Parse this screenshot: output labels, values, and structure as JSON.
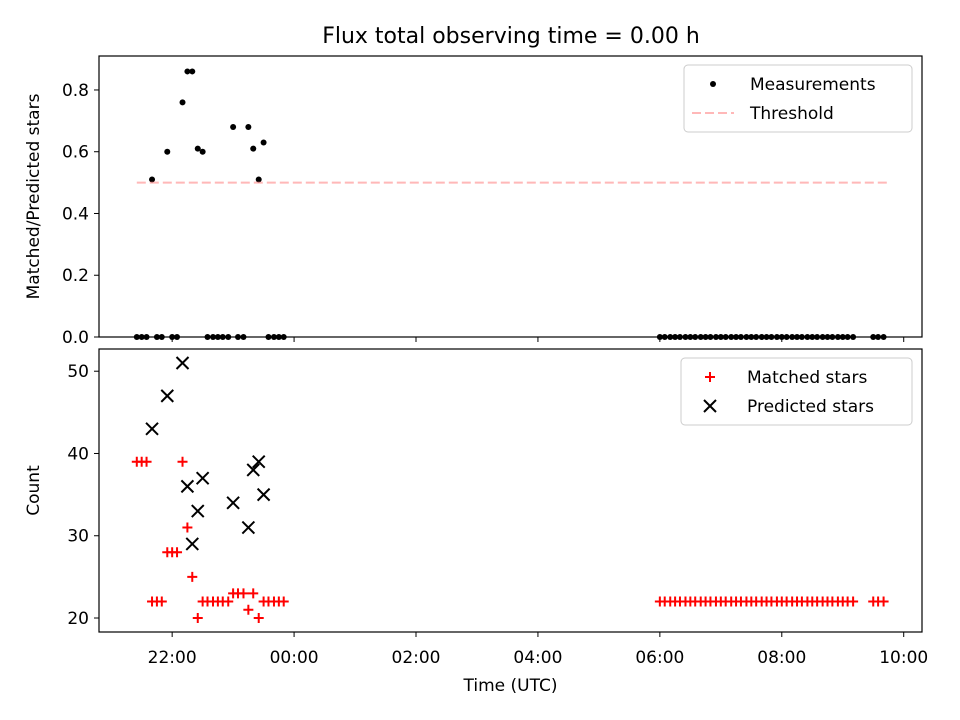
{
  "title": "Flux total observing time = 0.00 h",
  "chart_data": [
    {
      "type": "scatter",
      "ylabel": "Matched/Predicted stars",
      "xlim": [
        20.8,
        10.3
      ],
      "ylim": [
        0,
        0.91
      ],
      "xticks": [
        22,
        0,
        2,
        4,
        6,
        8,
        10
      ],
      "xticklabels": [
        "22:00",
        "00:00",
        "02:00",
        "04:00",
        "06:00",
        "08:00",
        "10:00"
      ],
      "yticks": [
        0.0,
        0.2,
        0.4,
        0.6,
        0.8
      ],
      "yticklabels": [
        "0.0",
        "0.2",
        "0.4",
        "0.6",
        "0.8"
      ],
      "legend": "top-right",
      "legend_entries": [
        {
          "label": "Measurements",
          "marker": "dot",
          "color": "#000000"
        },
        {
          "label": "Threshold",
          "marker": "dashed-line",
          "color": "#ff7f7f"
        }
      ],
      "series": [
        {
          "name": "Measurements",
          "style": "dot",
          "color": "#000000",
          "points": [
            [
              21.42,
              0
            ],
            [
              21.5,
              0
            ],
            [
              21.58,
              0
            ],
            [
              21.67,
              0.51
            ],
            [
              21.75,
              0
            ],
            [
              21.83,
              0
            ],
            [
              21.92,
              0.6
            ],
            [
              22.0,
              0
            ],
            [
              22.08,
              0
            ],
            [
              22.17,
              0.76
            ],
            [
              22.25,
              0.86
            ],
            [
              22.33,
              0.86
            ],
            [
              22.42,
              0.61
            ],
            [
              22.5,
              0.6
            ],
            [
              22.58,
              0
            ],
            [
              22.67,
              0
            ],
            [
              22.75,
              0
            ],
            [
              22.83,
              0
            ],
            [
              22.92,
              0
            ],
            [
              23.0,
              0.68
            ],
            [
              23.08,
              0
            ],
            [
              23.17,
              0
            ],
            [
              23.25,
              0.68
            ],
            [
              23.33,
              0.61
            ],
            [
              23.42,
              0.51
            ],
            [
              23.5,
              0.63
            ],
            [
              23.58,
              0
            ],
            [
              23.67,
              0
            ],
            [
              23.75,
              0
            ],
            [
              23.83,
              0
            ],
            [
              30.0,
              0
            ],
            [
              30.08,
              0
            ],
            [
              30.17,
              0
            ],
            [
              30.25,
              0
            ],
            [
              30.33,
              0
            ],
            [
              30.42,
              0
            ],
            [
              30.5,
              0
            ],
            [
              30.58,
              0
            ],
            [
              30.67,
              0
            ],
            [
              30.75,
              0
            ],
            [
              30.83,
              0
            ],
            [
              30.92,
              0
            ],
            [
              31.0,
              0
            ],
            [
              31.08,
              0
            ],
            [
              31.17,
              0
            ],
            [
              31.25,
              0
            ],
            [
              31.33,
              0
            ],
            [
              31.42,
              0
            ],
            [
              31.5,
              0
            ],
            [
              31.58,
              0
            ],
            [
              31.67,
              0
            ],
            [
              31.75,
              0
            ],
            [
              31.83,
              0
            ],
            [
              31.92,
              0
            ],
            [
              32.0,
              0
            ],
            [
              32.08,
              0
            ],
            [
              32.17,
              0
            ],
            [
              32.25,
              0
            ],
            [
              32.33,
              0
            ],
            [
              32.42,
              0
            ],
            [
              32.5,
              0
            ],
            [
              32.58,
              0
            ],
            [
              32.67,
              0
            ],
            [
              32.75,
              0
            ],
            [
              32.83,
              0
            ],
            [
              32.92,
              0
            ],
            [
              33.0,
              0
            ],
            [
              33.08,
              0
            ],
            [
              33.17,
              0
            ],
            [
              33.5,
              0
            ],
            [
              33.58,
              0
            ],
            [
              33.67,
              0
            ]
          ]
        },
        {
          "name": "Threshold",
          "style": "dashed-line",
          "color": "#ff7f7f",
          "points": [
            [
              21.42,
              0.5
            ],
            [
              33.75,
              0.5
            ]
          ]
        }
      ]
    },
    {
      "type": "scatter",
      "xlabel": "Time (UTC)",
      "ylabel": "Count",
      "xlim": [
        20.8,
        10.3
      ],
      "ylim": [
        18.3,
        52.7
      ],
      "xticks": [
        22,
        0,
        2,
        4,
        6,
        8,
        10
      ],
      "xticklabels": [
        "22:00",
        "00:00",
        "02:00",
        "04:00",
        "06:00",
        "08:00",
        "10:00"
      ],
      "yticks": [
        20,
        30,
        40,
        50
      ],
      "yticklabels": [
        "20",
        "30",
        "40",
        "50"
      ],
      "legend": "top-right",
      "legend_entries": [
        {
          "label": "Matched stars",
          "marker": "plus",
          "color": "#ff0000"
        },
        {
          "label": "Predicted stars",
          "marker": "x",
          "color": "#000000"
        }
      ],
      "series": [
        {
          "name": "Matched stars",
          "style": "plus",
          "color": "#ff0000",
          "points": [
            [
              21.42,
              39
            ],
            [
              21.5,
              39
            ],
            [
              21.58,
              39
            ],
            [
              21.67,
              22
            ],
            [
              21.75,
              22
            ],
            [
              21.83,
              22
            ],
            [
              21.92,
              28
            ],
            [
              22.0,
              28
            ],
            [
              22.08,
              28
            ],
            [
              22.17,
              39
            ],
            [
              22.25,
              31
            ],
            [
              22.33,
              25
            ],
            [
              22.42,
              20
            ],
            [
              22.5,
              22
            ],
            [
              22.58,
              22
            ],
            [
              22.67,
              22
            ],
            [
              22.75,
              22
            ],
            [
              22.83,
              22
            ],
            [
              22.92,
              22
            ],
            [
              23.0,
              23
            ],
            [
              23.08,
              23
            ],
            [
              23.17,
              23
            ],
            [
              23.25,
              21
            ],
            [
              23.33,
              23
            ],
            [
              23.42,
              20
            ],
            [
              23.5,
              22
            ],
            [
              23.58,
              22
            ],
            [
              23.67,
              22
            ],
            [
              23.75,
              22
            ],
            [
              23.83,
              22
            ],
            [
              30.0,
              22
            ],
            [
              30.08,
              22
            ],
            [
              30.17,
              22
            ],
            [
              30.25,
              22
            ],
            [
              30.33,
              22
            ],
            [
              30.42,
              22
            ],
            [
              30.5,
              22
            ],
            [
              30.58,
              22
            ],
            [
              30.67,
              22
            ],
            [
              30.75,
              22
            ],
            [
              30.83,
              22
            ],
            [
              30.92,
              22
            ],
            [
              31.0,
              22
            ],
            [
              31.08,
              22
            ],
            [
              31.17,
              22
            ],
            [
              31.25,
              22
            ],
            [
              31.33,
              22
            ],
            [
              31.42,
              22
            ],
            [
              31.5,
              22
            ],
            [
              31.58,
              22
            ],
            [
              31.67,
              22
            ],
            [
              31.75,
              22
            ],
            [
              31.83,
              22
            ],
            [
              31.92,
              22
            ],
            [
              32.0,
              22
            ],
            [
              32.08,
              22
            ],
            [
              32.17,
              22
            ],
            [
              32.25,
              22
            ],
            [
              32.33,
              22
            ],
            [
              32.42,
              22
            ],
            [
              32.5,
              22
            ],
            [
              32.58,
              22
            ],
            [
              32.67,
              22
            ],
            [
              32.75,
              22
            ],
            [
              32.83,
              22
            ],
            [
              32.92,
              22
            ],
            [
              33.0,
              22
            ],
            [
              33.08,
              22
            ],
            [
              33.17,
              22
            ],
            [
              33.5,
              22
            ],
            [
              33.58,
              22
            ],
            [
              33.67,
              22
            ]
          ]
        },
        {
          "name": "Predicted stars",
          "style": "x",
          "color": "#000000",
          "points": [
            [
              21.67,
              43
            ],
            [
              21.92,
              47
            ],
            [
              22.17,
              51
            ],
            [
              22.25,
              36
            ],
            [
              22.33,
              29
            ],
            [
              22.42,
              33
            ],
            [
              22.5,
              37
            ],
            [
              23.0,
              34
            ],
            [
              23.25,
              31
            ],
            [
              23.33,
              38
            ],
            [
              23.42,
              39
            ],
            [
              23.5,
              35
            ]
          ]
        }
      ]
    }
  ]
}
